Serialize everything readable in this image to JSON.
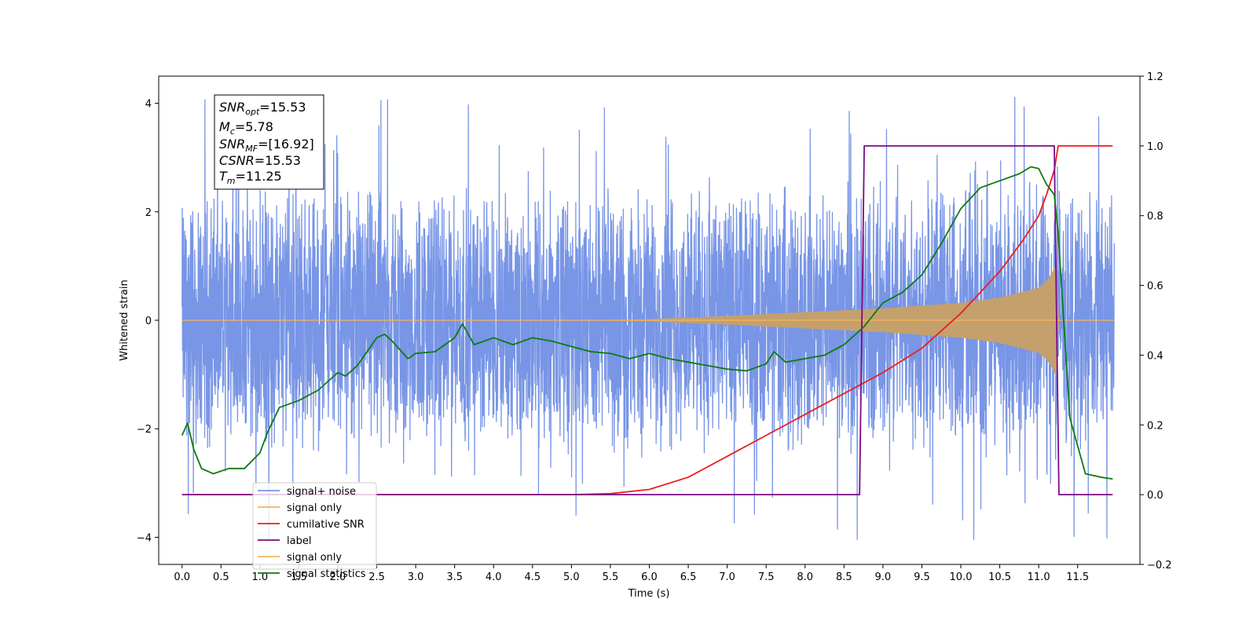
{
  "chart_data": {
    "type": "line",
    "xlabel": "Time (s)",
    "ylabel": "Whitened strain",
    "x_ticks": [
      "0.0",
      "0.5",
      "1.0",
      "1.5",
      "2.0",
      "2.5",
      "3.0",
      "3.5",
      "4.0",
      "4.5",
      "5.0",
      "5.5",
      "6.0",
      "6.5",
      "7.0",
      "7.5",
      "8.0",
      "8.5",
      "9.0",
      "9.5",
      "10.0",
      "10.5",
      "11.0",
      "11.5"
    ],
    "left_y_ticks": [
      "4",
      "2",
      "0",
      "−2",
      "−4"
    ],
    "right_y_ticks": [
      "1.2",
      "1.0",
      "0.8",
      "0.6",
      "0.4",
      "0.2",
      "0.0",
      "−0.2"
    ],
    "xlim": [
      -0.3,
      12.3
    ],
    "ylim_left": [
      -4.5,
      4.5
    ],
    "ylim_right": [
      -0.2,
      1.2
    ],
    "grid": false,
    "legend_position": "lower-left",
    "colors": {
      "noise": "#7895e6",
      "signal": "#c4a06c",
      "signal_line": "#f5b55d",
      "cumulative_snr": "#ee1c1c",
      "label": "#7c0a85",
      "statistics": "#0d7a12"
    },
    "stats_box": {
      "snr_opt": {
        "base": "SNR",
        "sub": "opt",
        "value": "=15.53"
      },
      "mc": {
        "base": "M",
        "sub": "c",
        "value": "=5.78"
      },
      "snr_mf": {
        "base": "SNR",
        "sub": "MF",
        "value": "=[16.92]"
      },
      "csnr": {
        "base": "CSNR",
        "value": "=15.53"
      },
      "tm": {
        "base": "T",
        "sub": "m",
        "value": "=11.25"
      }
    },
    "series": [
      {
        "name": "signal+ noise",
        "axis": "left",
        "description_level": "noisy whitened strain, approx ±2.5 band with spikes to ±4.1"
      },
      {
        "name": "signal only",
        "axis": "left",
        "envelope": {
          "x": [
            0.0,
            5.0,
            6.0,
            7.0,
            8.0,
            9.0,
            10.0,
            10.5,
            11.0,
            11.1,
            11.2,
            11.25
          ],
          "amplitude": [
            0.0,
            0.0,
            0.02,
            0.08,
            0.15,
            0.22,
            0.32,
            0.42,
            0.6,
            0.72,
            0.95,
            1.15
          ]
        }
      },
      {
        "name": "cumilative SNR",
        "axis": "right",
        "x": [
          0.0,
          5.0,
          5.5,
          6.0,
          6.5,
          7.0,
          7.5,
          8.0,
          8.5,
          9.0,
          9.5,
          10.0,
          10.5,
          10.8,
          11.0,
          11.1,
          11.2,
          11.25,
          11.3,
          11.95
        ],
        "y": [
          0.0,
          0.0,
          0.003,
          0.015,
          0.05,
          0.11,
          0.17,
          0.23,
          0.29,
          0.35,
          0.42,
          0.52,
          0.64,
          0.73,
          0.8,
          0.86,
          0.93,
          1.0,
          1.0,
          1.0
        ]
      },
      {
        "name": "label",
        "axis": "right",
        "x": [
          0.0,
          8.7,
          8.76,
          11.2,
          11.26,
          11.95
        ],
        "y": [
          0.0,
          0.0,
          1.0,
          1.0,
          0.0,
          0.0
        ]
      },
      {
        "name": "signal only",
        "axis": "left",
        "hidden_duplicate": true
      },
      {
        "name": "signal statistics",
        "axis": "right",
        "x": [
          0.0,
          0.07,
          0.15,
          0.25,
          0.4,
          0.6,
          0.8,
          1.0,
          1.1,
          1.25,
          1.5,
          1.75,
          2.0,
          2.1,
          2.25,
          2.5,
          2.6,
          2.7,
          2.9,
          3.0,
          3.25,
          3.5,
          3.6,
          3.75,
          4.0,
          4.25,
          4.5,
          4.75,
          5.0,
          5.25,
          5.5,
          5.75,
          6.0,
          6.25,
          6.5,
          6.75,
          7.0,
          7.25,
          7.5,
          7.6,
          7.75,
          8.0,
          8.25,
          8.5,
          8.75,
          9.0,
          9.25,
          9.5,
          9.75,
          10.0,
          10.25,
          10.5,
          10.75,
          10.9,
          11.0,
          11.1,
          11.2,
          11.25,
          11.4,
          11.6,
          11.8,
          11.95
        ],
        "y": [
          0.17,
          0.205,
          0.13,
          0.075,
          0.06,
          0.075,
          0.075,
          0.12,
          0.18,
          0.25,
          0.27,
          0.3,
          0.35,
          0.34,
          0.37,
          0.45,
          0.46,
          0.44,
          0.39,
          0.405,
          0.41,
          0.45,
          0.49,
          0.43,
          0.45,
          0.43,
          0.45,
          0.44,
          0.425,
          0.41,
          0.405,
          0.39,
          0.405,
          0.39,
          0.38,
          0.37,
          0.36,
          0.355,
          0.375,
          0.41,
          0.38,
          0.39,
          0.4,
          0.43,
          0.48,
          0.55,
          0.58,
          0.63,
          0.72,
          0.82,
          0.88,
          0.9,
          0.92,
          0.94,
          0.935,
          0.89,
          0.86,
          0.75,
          0.22,
          0.06,
          0.05,
          0.045
        ]
      }
    ],
    "legend": [
      "signal+ noise",
      "signal only",
      "cumilative SNR",
      "label",
      "signal only",
      "signal statistics"
    ]
  }
}
